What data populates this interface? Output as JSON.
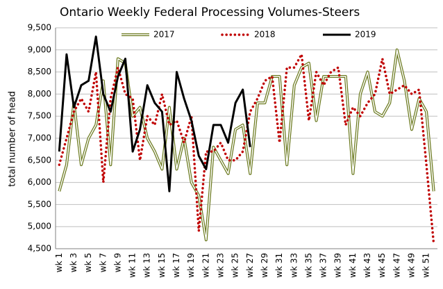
{
  "chart_data": {
    "type": "line",
    "title": "Ontario Weekly Federal Processing Volumes-Steers",
    "y_label": "total number of head",
    "categories": [
      "wk 1",
      null,
      "wk 3",
      null,
      "wk 5",
      null,
      "wk 7",
      null,
      "wk 9",
      null,
      "wk 11",
      null,
      "wk 13",
      null,
      "wk 15",
      null,
      "wk 17",
      null,
      "wk 19",
      null,
      "wk 21",
      null,
      "wk 23",
      null,
      "wk 25",
      null,
      "wk 27",
      null,
      "wk 29",
      null,
      "wk 31",
      null,
      "wk 33",
      null,
      "wk 35",
      null,
      "wk 37",
      null,
      "wk 39",
      null,
      "wk 41",
      null,
      "wk 43",
      null,
      "wk 45",
      null,
      "wk 47",
      null,
      "wk 49",
      null,
      "wk 51",
      null
    ],
    "series": [
      {
        "name": "2017",
        "color": "#6b7a1f",
        "style": "solid",
        "values": [
          5800,
          6400,
          7800,
          6400,
          7000,
          7300,
          8300,
          6400,
          8800,
          8700,
          7500,
          7700,
          7000,
          6700,
          6300,
          7700,
          6300,
          7000,
          6000,
          5700,
          4700,
          6800,
          6500,
          6200,
          7200,
          7300,
          6200,
          7800,
          7800,
          8400,
          8400,
          6400,
          8200,
          8600,
          8700,
          7400,
          8400,
          8400,
          8400,
          8400,
          6200,
          8000,
          8500,
          7600,
          7500,
          7800,
          9000,
          8300,
          7200,
          7900,
          7600,
          5800
        ]
      },
      {
        "name": "2018",
        "color": "#c00000",
        "style": "dotted",
        "values": [
          6400,
          7000,
          7600,
          7900,
          7600,
          8500,
          6000,
          7900,
          8600,
          8000,
          7900,
          6500,
          7500,
          7300,
          8000,
          7300,
          7400,
          6900,
          7500,
          4900,
          6700,
          6700,
          6900,
          6500,
          6500,
          6700,
          7600,
          7900,
          8300,
          8400,
          6900,
          8600,
          8600,
          8900,
          7400,
          8500,
          8200,
          8500,
          8600,
          7300,
          7700,
          7500,
          7800,
          8000,
          8800,
          8000,
          8100,
          8200,
          8000,
          8100,
          6400,
          4600
        ]
      },
      {
        "name": "2019",
        "color": "#000000",
        "style": "solid",
        "values": [
          6700,
          8900,
          7700,
          8200,
          8300,
          9300,
          8000,
          7600,
          8400,
          8800,
          6700,
          7200,
          8200,
          7800,
          7600,
          5800,
          8500,
          7900,
          7400,
          6600,
          6300,
          7300,
          7300,
          6900,
          7800,
          8100,
          6800,
          null,
          null,
          null,
          null,
          null,
          null,
          null,
          null,
          null,
          null,
          null,
          null,
          null,
          null,
          null,
          null,
          null,
          null,
          null,
          null,
          null,
          null,
          null,
          null,
          null
        ]
      }
    ],
    "ylim": [
      4500,
      9500
    ],
    "yticks": [
      {
        "value": 4500,
        "label": "4,500"
      },
      {
        "value": 5000,
        "label": "5,000"
      },
      {
        "value": 5500,
        "label": "5,500"
      },
      {
        "value": 6000,
        "label": "6,000"
      },
      {
        "value": 6500,
        "label": "6,500"
      },
      {
        "value": 7000,
        "label": "7,000"
      },
      {
        "value": 7500,
        "label": "7,500"
      },
      {
        "value": 8000,
        "label": "8,000"
      },
      {
        "value": 8500,
        "label": "8,500"
      },
      {
        "value": 9000,
        "label": "9,000"
      },
      {
        "value": 9500,
        "label": "9,500"
      }
    ],
    "grid": true
  }
}
